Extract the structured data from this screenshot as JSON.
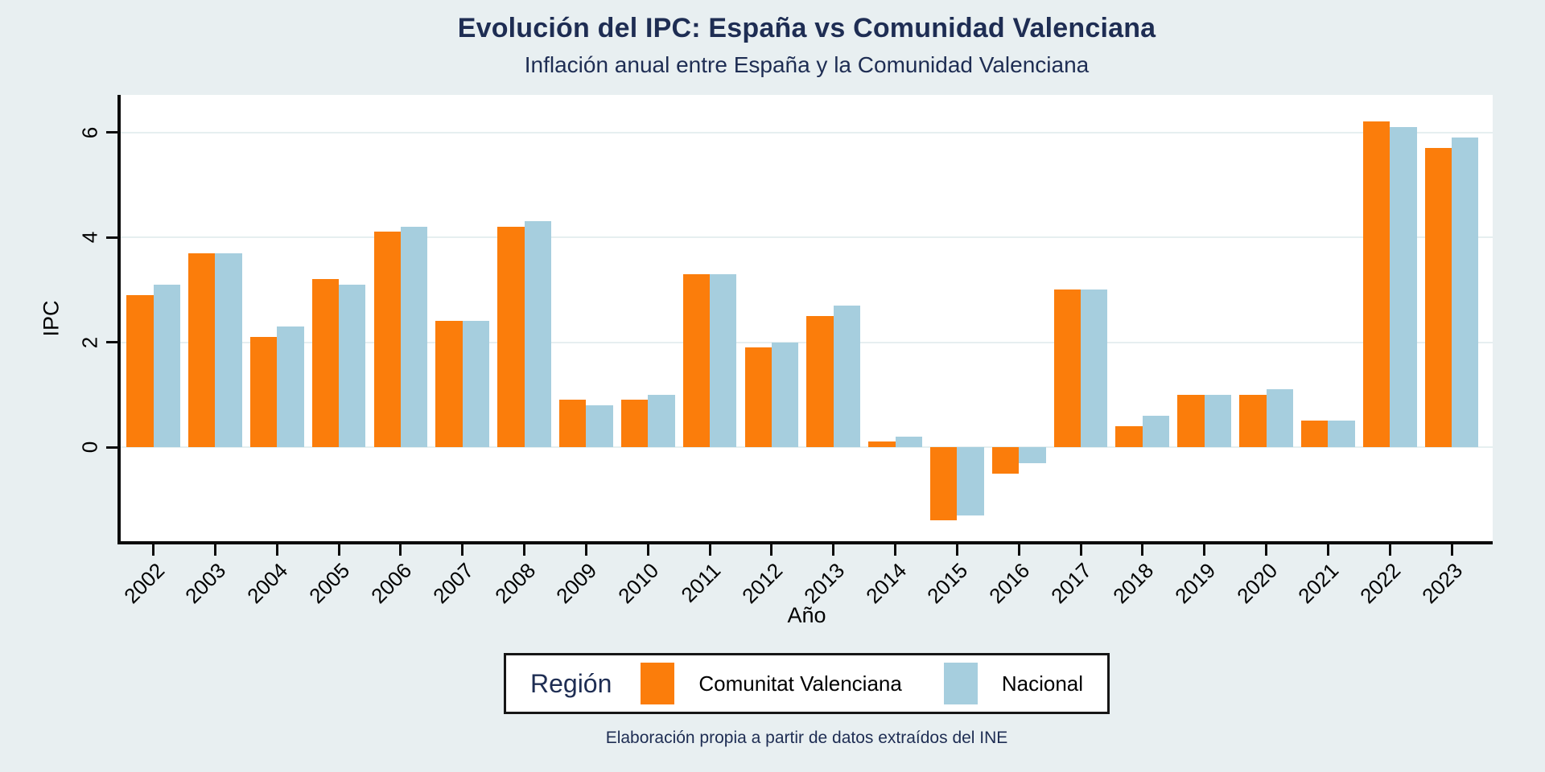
{
  "chart_data": {
    "type": "bar",
    "title": "Evolución del IPC: España vs Comunidad Valenciana",
    "subtitle": "Inflación anual entre España y la Comunidad Valenciana",
    "caption": "Elaboración propia a partir de datos extraídos del INE",
    "xlabel": "Año",
    "ylabel": "IPC",
    "legend_title": "Región",
    "legend_position": "bottom-center",
    "grid": true,
    "background_color": "#e8eff1",
    "plot_background": "#ffffff",
    "title_color": "#1e2d53",
    "categories": [
      "2002",
      "2003",
      "2004",
      "2005",
      "2006",
      "2007",
      "2008",
      "2009",
      "2010",
      "2011",
      "2012",
      "2013",
      "2014",
      "2015",
      "2016",
      "2017",
      "2018",
      "2019",
      "2020",
      "2021",
      "2022",
      "2023"
    ],
    "series": [
      {
        "name": "Comunitat Valenciana",
        "color": "#fb7d0b",
        "values": [
          2.9,
          3.7,
          2.1,
          3.2,
          4.1,
          2.4,
          4.2,
          0.9,
          0.9,
          3.3,
          1.9,
          2.5,
          0.1,
          -1.4,
          -0.5,
          3.0,
          0.4,
          1.0,
          1.0,
          0.5,
          6.2,
          5.7
        ]
      },
      {
        "name": "Nacional",
        "color": "#a6cede",
        "values": [
          3.1,
          3.7,
          2.3,
          3.1,
          4.2,
          2.4,
          4.3,
          0.8,
          1.0,
          3.3,
          2.0,
          2.7,
          0.2,
          -1.3,
          -0.3,
          3.0,
          0.6,
          1.0,
          1.1,
          0.5,
          6.1,
          5.9
        ]
      }
    ],
    "yticks": [
      "0",
      "2",
      "4",
      "6"
    ],
    "ylim": [
      -1.8,
      6.7
    ]
  }
}
